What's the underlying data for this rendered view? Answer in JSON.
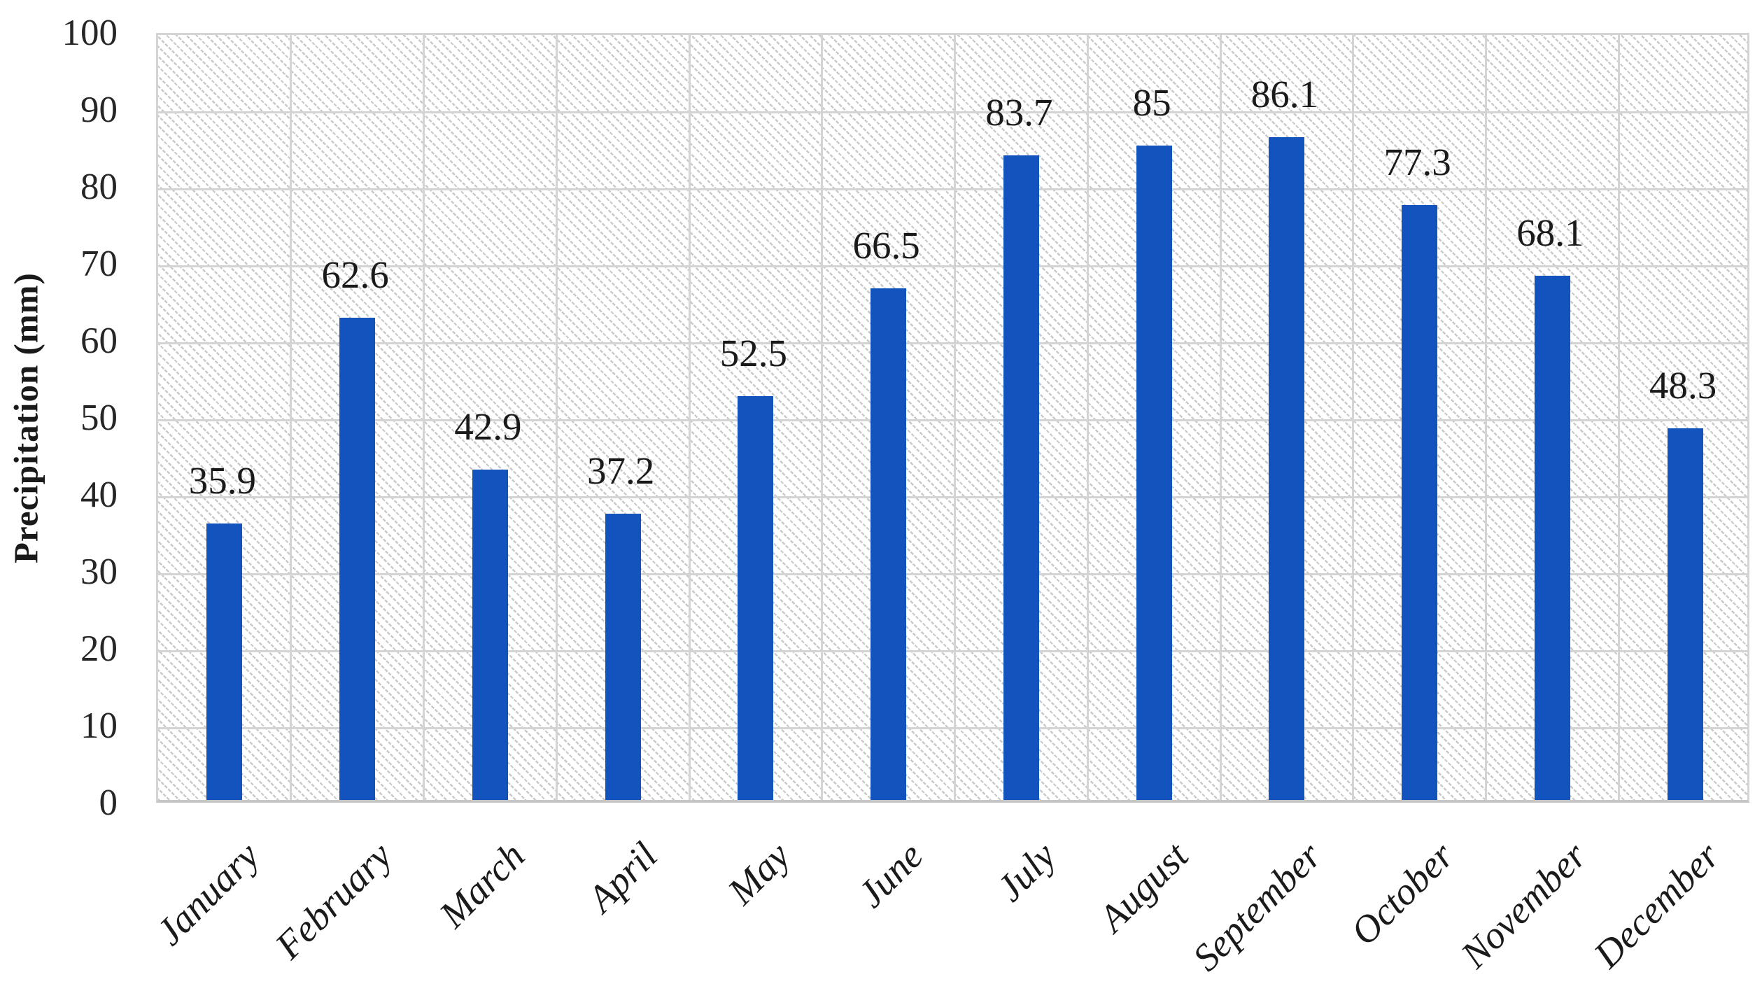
{
  "chart_data": {
    "type": "bar",
    "title": "",
    "xlabel": "",
    "ylabel": "Precipitation (mm)",
    "categories": [
      "January",
      "February",
      "March",
      "April",
      "May",
      "June",
      "July",
      "August",
      "September",
      "October",
      "November",
      "December"
    ],
    "values": [
      35.9,
      62.6,
      42.9,
      37.2,
      52.5,
      66.5,
      83.7,
      85,
      86.1,
      77.3,
      68.1,
      48.3
    ],
    "data_labels": [
      "35.9",
      "62.6",
      "42.9",
      "37.2",
      "52.5",
      "66.5",
      "83.7",
      "85",
      "86.1",
      "77.3",
      "68.1",
      "48.3"
    ],
    "ylim": [
      0,
      100
    ],
    "yticks": [
      0,
      10,
      20,
      30,
      40,
      50,
      60,
      70,
      80,
      90,
      100
    ],
    "grid": "horizontal-and-vertical",
    "legend": "none",
    "bar_color": "#1353be",
    "gridline_color": "#d4d4d4",
    "plot_background": "white-with-light-downward-diagonal-hatch",
    "label_color": "#1a1a1a"
  }
}
